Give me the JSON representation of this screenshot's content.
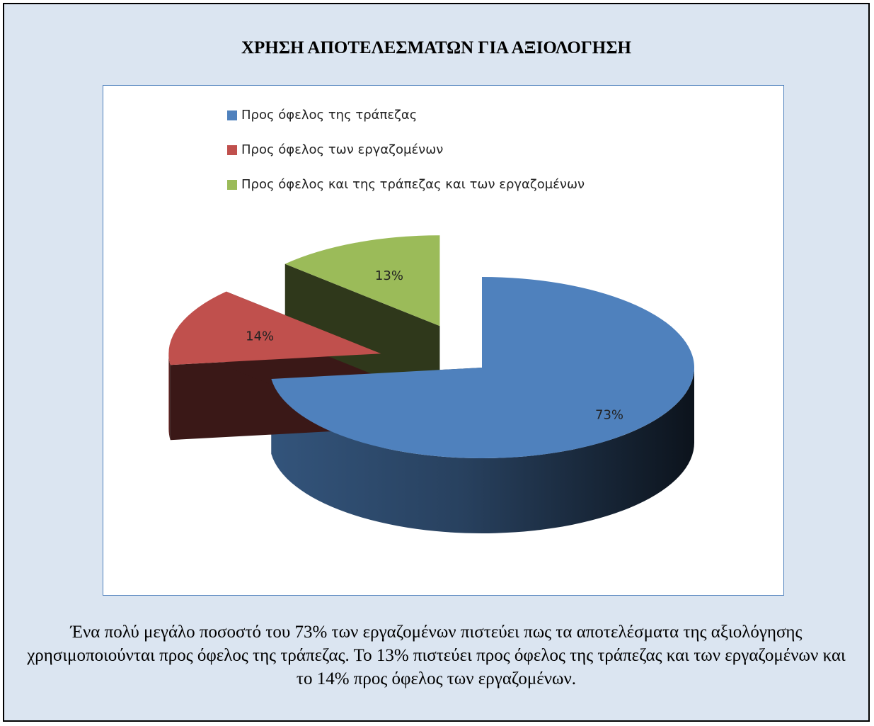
{
  "chart_data": {
    "type": "pie",
    "title": "ΧΡΗΣΗ ΑΠΟΤΕΛΕΣΜΑΤΩΝ ΓΙΑ ΑΞΙΟΛΟΓΗΣΗ",
    "categories": [
      "Προς όφελος της τράπεζας",
      "Προς όφελος των εργαζομένων",
      "Προς όφελος και της τράπεζας και των εργαζομένων"
    ],
    "values": [
      73,
      14,
      13
    ],
    "value_labels": [
      "73%",
      "14%",
      "13%"
    ],
    "colors": [
      "#4f81bd",
      "#c0504d",
      "#9bbb59"
    ],
    "legend": "top"
  },
  "caption": "Ένα πολύ μεγάλο ποσοστό του 73% των εργαζομένων πιστεύει πως τα αποτελέσματα της αξιολόγησης χρησιμοποιούνται προς όφελος της τράπεζας. Το 13% πιστεύει προς όφελος της τράπεζας και των εργαζομένων και το 14% προς όφελος των εργαζομένων."
}
